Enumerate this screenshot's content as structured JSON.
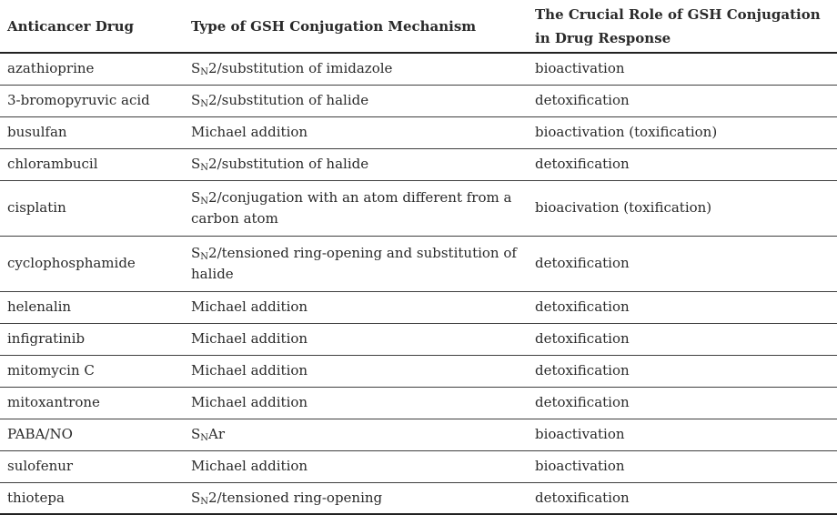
{
  "colors": {
    "text": "#2a2a2a",
    "border_heavy": "#222222",
    "border_light": "#3f3f3f",
    "background": "#ffffff"
  },
  "table": {
    "columns": [
      "Anticancer Drug",
      "Type of GSH Conjugation Mechanism",
      "The Crucial Role of GSH Conjugation in Drug Response"
    ],
    "rows": [
      {
        "drug": "azathioprine",
        "mech_pre": "S",
        "mech_sub": "N",
        "mech_post": "2/substitution of imidazole",
        "role": "bioactivation"
      },
      {
        "drug": "3-bromopyruvic acid",
        "mech_pre": "S",
        "mech_sub": "N",
        "mech_post": "2/substitution of halide",
        "role": "detoxification"
      },
      {
        "drug": "busulfan",
        "mech_pre": "Michael addition",
        "mech_sub": "",
        "mech_post": "",
        "role": "bioactivation (toxification)"
      },
      {
        "drug": "chlorambucil",
        "mech_pre": "S",
        "mech_sub": "N",
        "mech_post": "2/substitution of halide",
        "role": "detoxification"
      },
      {
        "drug": "cisplatin",
        "mech_pre": "S",
        "mech_sub": "N",
        "mech_post": "2/conjugation with an atom different from a carbon atom",
        "role": "bioacivation (toxification)"
      },
      {
        "drug": "cyclophosphamide",
        "mech_pre": "S",
        "mech_sub": "N",
        "mech_post": "2/tensioned ring-opening and substitution of halide",
        "role": "detoxification"
      },
      {
        "drug": "helenalin",
        "mech_pre": "Michael addition",
        "mech_sub": "",
        "mech_post": "",
        "role": "detoxification"
      },
      {
        "drug": "infigratinib",
        "mech_pre": "Michael addition",
        "mech_sub": "",
        "mech_post": "",
        "role": "detoxification"
      },
      {
        "drug": "mitomycin C",
        "mech_pre": "Michael addition",
        "mech_sub": "",
        "mech_post": "",
        "role": "detoxification"
      },
      {
        "drug": "mitoxantrone",
        "mech_pre": "Michael addition",
        "mech_sub": "",
        "mech_post": "",
        "role": "detoxification"
      },
      {
        "drug": "PABA/NO",
        "mech_pre": "S",
        "mech_sub": "N",
        "mech_post": "Ar",
        "role": "bioactivation"
      },
      {
        "drug": "sulofenur",
        "mech_pre": "Michael addition",
        "mech_sub": "",
        "mech_post": "",
        "role": "bioactivation"
      },
      {
        "drug": "thiotepa",
        "mech_pre": "S",
        "mech_sub": "N",
        "mech_post": "2/tensioned ring-opening",
        "role": "detoxification"
      }
    ]
  }
}
